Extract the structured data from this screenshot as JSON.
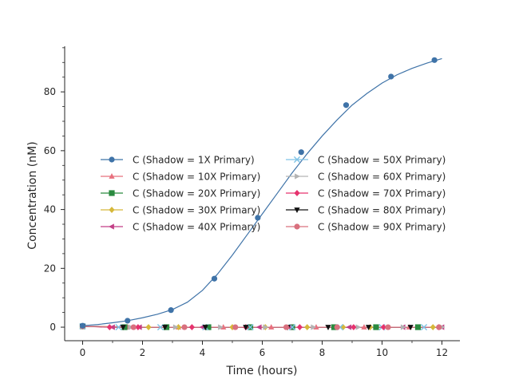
{
  "chart_data": {
    "type": "line",
    "xlabel": "Time (hours)",
    "ylabel": "Concentration (nM)",
    "xlim": [
      -0.6,
      12.6
    ],
    "ylim": [
      -4.6,
      95.5
    ],
    "xticks": [
      "0",
      "2",
      "4",
      "6",
      "8",
      "10",
      "12"
    ],
    "yticks": [
      "0",
      "20",
      "40",
      "60",
      "80"
    ],
    "grid": false,
    "legend_position": "center",
    "legend_columns": 2,
    "series": [
      {
        "name": "C (Shadow = 1X Primary)",
        "color": "#3f73a8",
        "marker": "circle",
        "curve": {
          "x": [
            0,
            0.5,
            1,
            1.5,
            2,
            2.5,
            3,
            3.5,
            4,
            4.5,
            5,
            5.5,
            6,
            6.5,
            7,
            7.5,
            8,
            8.5,
            9,
            9.5,
            10,
            10.5,
            11,
            11.5,
            12
          ],
          "y": [
            0.5,
            0.9,
            1.5,
            2.2,
            3.2,
            4.4,
            6.0,
            8.5,
            12.5,
            18.0,
            24.5,
            31.5,
            38.5,
            45.5,
            52.5,
            59.0,
            65.0,
            70.5,
            75.5,
            79.5,
            83.0,
            85.8,
            88.0,
            89.8,
            91.3
          ]
        },
        "marker_points": {
          "x": [
            0,
            1.5,
            2.95,
            4.4,
            5.85,
            7.3,
            8.8,
            10.3,
            11.75
          ],
          "y": [
            0.5,
            2.2,
            5.8,
            16.5,
            37.2,
            59.5,
            75.5,
            85.2,
            90.8
          ]
        }
      },
      {
        "name": "C (Shadow = 10X Primary)",
        "color": "#e8707e",
        "marker": "triangle-up",
        "marker_points": {
          "x": [
            0,
            1.5,
            3.2,
            4.7,
            6.3,
            7.8,
            9.4,
            10.9
          ],
          "y": [
            0.3,
            0,
            0,
            0,
            0,
            0,
            0,
            0
          ]
        }
      },
      {
        "name": "C (Shadow = 20X Primary)",
        "color": "#2a8a3f",
        "marker": "square",
        "marker_points": {
          "x": [
            0,
            1.4,
            2.8,
            4.2,
            5.6,
            7.0,
            8.4,
            9.8,
            11.2
          ],
          "y": [
            0.3,
            0,
            0,
            0,
            0,
            0,
            0,
            0,
            0
          ]
        }
      },
      {
        "name": "C (Shadow = 30X Primary)",
        "color": "#d6b83a",
        "marker": "diamond",
        "marker_points": {
          "x": [
            0,
            2.2,
            3.2,
            5.0,
            6.1,
            7.5,
            8.7,
            9.6,
            11.7
          ],
          "y": [
            0.3,
            0,
            0,
            0,
            0,
            0,
            0,
            0,
            0
          ]
        }
      },
      {
        "name": "C (Shadow = 40X Primary)",
        "color": "#c23f86",
        "marker": "triangle-left",
        "marker_points": {
          "x": [
            0,
            1.0,
            1.9,
            4.0,
            5.9,
            6.9,
            8.9,
            10.7,
            12.0
          ],
          "y": [
            0.3,
            0,
            0,
            0,
            0,
            0,
            0,
            0,
            0
          ]
        }
      },
      {
        "name": "C (Shadow = 50X Primary)",
        "color": "#7fc3e6",
        "marker": "x",
        "marker_points": {
          "x": [
            0,
            1.2,
            2.6,
            4.1,
            5.6,
            7.0,
            8.6,
            10.0,
            11.4
          ],
          "y": [
            0.3,
            0,
            0,
            0,
            0,
            0,
            0,
            0,
            0
          ]
        }
      },
      {
        "name": "C (Shadow = 60X Primary)",
        "color": "#b3b3b3",
        "marker": "triangle-right",
        "marker_points": {
          "x": [
            0,
            1.6,
            3.1,
            4.6,
            6.1,
            7.7,
            9.2,
            10.7,
            12.0
          ],
          "y": [
            0.3,
            0,
            0,
            0,
            0,
            0,
            0,
            0,
            0
          ]
        }
      },
      {
        "name": "C (Shadow = 70X Primary)",
        "color": "#e6336e",
        "marker": "diamond",
        "marker_points": {
          "x": [
            0,
            0.9,
            1.85,
            3.65,
            5.45,
            7.25,
            9.05,
            10.05,
            11.9
          ],
          "y": [
            0.3,
            0,
            0,
            0,
            0,
            0,
            0,
            0,
            0
          ]
        }
      },
      {
        "name": "C (Shadow = 80X Primary)",
        "color": "#111111",
        "marker": "triangle-down",
        "marker_points": {
          "x": [
            0,
            1.35,
            2.75,
            4.1,
            5.45,
            6.85,
            8.2,
            9.55,
            10.95
          ],
          "y": [
            0.3,
            0,
            0,
            0,
            0,
            0,
            0,
            0,
            0
          ]
        }
      },
      {
        "name": "C (Shadow = 90X Primary)",
        "color": "#d9707e",
        "marker": "circle",
        "marker_points": {
          "x": [
            0,
            1.7,
            3.4,
            5.1,
            6.8,
            8.5,
            10.2,
            11.9
          ],
          "y": [
            0.3,
            0,
            0,
            0,
            0,
            0,
            0,
            0
          ]
        }
      }
    ]
  }
}
